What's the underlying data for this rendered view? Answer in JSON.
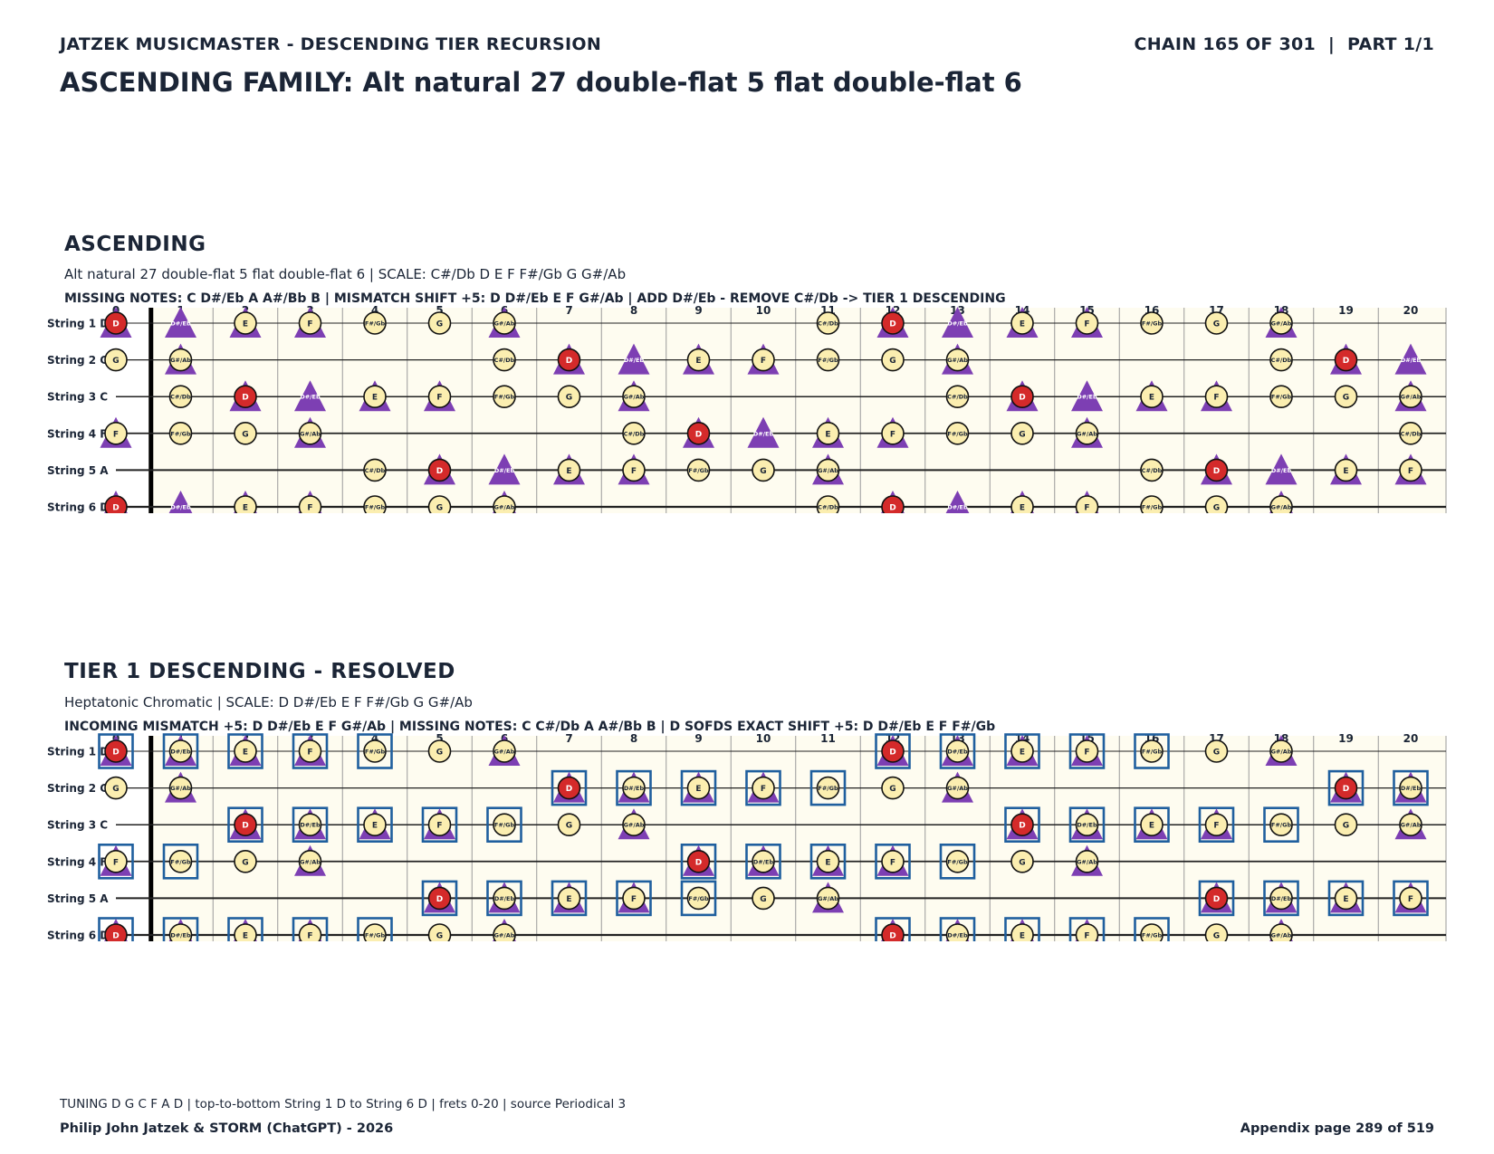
{
  "header": {
    "left": "JATZEK MUSICMASTER - DESCENDING TIER RECURSION",
    "right": "CHAIN 165 OF 301  |  PART 1/1",
    "title": "ASCENDING FAMILY: Alt natural 27 double-flat 5 flat double-flat 6"
  },
  "strings": [
    "String 1 D",
    "String 2 G",
    "String 3 C",
    "String 4 F",
    "String 5 A",
    "String 6 D"
  ],
  "frets": [
    "0",
    "1",
    "2",
    "3",
    "4",
    "5",
    "6",
    "7",
    "8",
    "9",
    "10",
    "11",
    "12",
    "13",
    "14",
    "15",
    "16",
    "17",
    "18",
    "19",
    "20"
  ],
  "legend_colors": {
    "root": "#d42a2a",
    "note": "#fbeeb0",
    "triangle": "#7d3fb3",
    "box": "#1f5f9e",
    "board_bg": "#fefcf0"
  },
  "sections": [
    {
      "id": "ascending",
      "title": "ASCENDING",
      "subtitle": "Alt natural 27 double-flat 5 flat double-flat 6  |  SCALE: C#/Db D E F F#/Gb G G#/Ab",
      "note": "MISSING NOTES: C D#/Eb A A#/Bb B  |  MISMATCH SHIFT +5: D D#/Eb E F G#/Ab  |  ADD D#/Eb - REMOVE C#/Db -> TIER 1 DESCENDING",
      "circle_notes": [
        "C#/Db",
        "D",
        "E",
        "F",
        "F#/Gb",
        "G",
        "G#/Ab"
      ],
      "triangle_notes": [
        "D",
        "D#/Eb",
        "E",
        "F",
        "G#/Ab"
      ],
      "box_notes": []
    },
    {
      "id": "tier1",
      "title": "TIER 1 DESCENDING - RESOLVED",
      "subtitle": "Heptatonic Chromatic  |  SCALE: D D#/Eb E F F#/Gb G G#/Ab",
      "note": "INCOMING MISMATCH +5: D D#/Eb E F G#/Ab  |  MISSING NOTES: C C#/Db A A#/Bb B  |  D SOFDS EXACT SHIFT +5: D D#/Eb E F F#/Gb",
      "circle_notes": [
        "D",
        "D#/Eb",
        "E",
        "F",
        "F#/Gb",
        "G",
        "G#/Ab"
      ],
      "triangle_notes": [
        "D",
        "D#/Eb",
        "E",
        "F",
        "G#/Ab"
      ],
      "box_notes": [
        "D",
        "D#/Eb",
        "E",
        "F",
        "F#/Gb"
      ]
    }
  ],
  "footer": {
    "info": "TUNING D G C F A D | top-to-bottom String 1 D to String 6 D | frets 0-20 | source Periodical 3",
    "credit": "Philip John Jatzek & STORM (ChatGPT) - 2026",
    "page": "Appendix page 289 of 519"
  }
}
